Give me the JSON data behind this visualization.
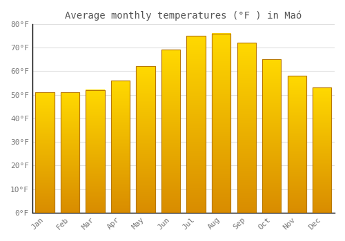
{
  "title": "Average monthly temperatures (°F ) in Maó",
  "months": [
    "Jan",
    "Feb",
    "Mar",
    "Apr",
    "May",
    "Jun",
    "Jul",
    "Aug",
    "Sep",
    "Oct",
    "Nov",
    "Dec"
  ],
  "values": [
    51,
    51,
    52,
    56,
    62,
    69,
    75,
    76,
    72,
    65,
    58,
    53
  ],
  "bar_color_light": "#FFD040",
  "bar_color_dark": "#E08000",
  "ylim": [
    0,
    80
  ],
  "yticks": [
    0,
    10,
    20,
    30,
    40,
    50,
    60,
    70,
    80
  ],
  "ytick_labels": [
    "0°F",
    "10°F",
    "20°F",
    "30°F",
    "40°F",
    "50°F",
    "60°F",
    "70°F",
    "80°F"
  ],
  "background_color": "#FFFFFF",
  "plot_bg_color": "#FFFFFF",
  "grid_color": "#E0E0E0",
  "title_fontsize": 10,
  "tick_fontsize": 8,
  "bar_width": 0.75
}
